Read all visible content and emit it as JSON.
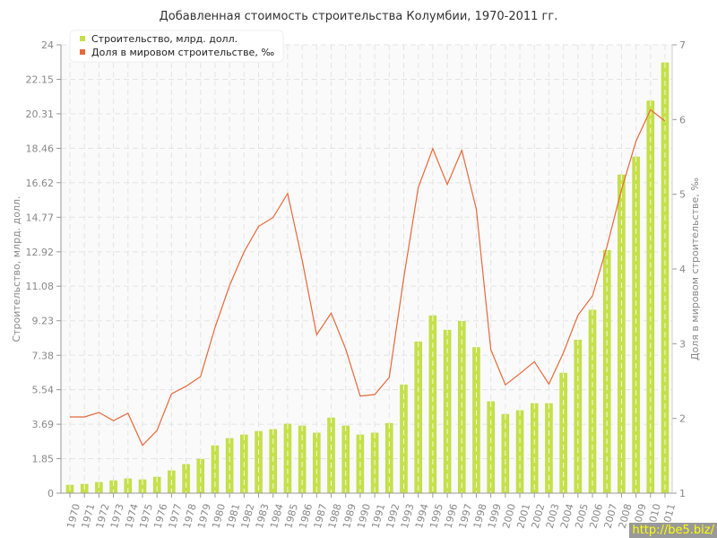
{
  "chart_data": {
    "type": "bar+line",
    "title": "Добавленная стоимость строительства Колумбии, 1970-2011 гг.",
    "ylabel": "Строительство, млрд. долл.",
    "y2label": "Доля в мировом строительстве, ‰",
    "ylim": [
      0,
      24
    ],
    "y2lim": [
      1,
      7
    ],
    "yticks": [
      "0",
      "1.85",
      "3.69",
      "5.54",
      "7.38",
      "9.23",
      "11.08",
      "12.92",
      "14.77",
      "16.62",
      "18.46",
      "20.31",
      "22.15",
      "24"
    ],
    "y2ticks": [
      "1",
      "2",
      "3",
      "4",
      "5",
      "6",
      "7"
    ],
    "grid": true,
    "legend_position": "top-left",
    "categories": [
      "1970",
      "1971",
      "1972",
      "1973",
      "1974",
      "1975",
      "1976",
      "1977",
      "1978",
      "1979",
      "1980",
      "1981",
      "1982",
      "1983",
      "1984",
      "1985",
      "1986",
      "1987",
      "1988",
      "1989",
      "1990",
      "1991",
      "1992",
      "1993",
      "1994",
      "1995",
      "1996",
      "1997",
      "1998",
      "1999",
      "2000",
      "2001",
      "2002",
      "2003",
      "2004",
      "2005",
      "2006",
      "2007",
      "2008",
      "2009",
      "2010",
      "2011"
    ],
    "series": [
      {
        "name": "Строительство, млрд. долл.",
        "type": "bar",
        "axis": "left",
        "color": "#c5e04a",
        "values": [
          0.43,
          0.48,
          0.58,
          0.67,
          0.77,
          0.72,
          0.86,
          1.2,
          1.54,
          1.82,
          2.54,
          2.93,
          3.12,
          3.31,
          3.41,
          3.7,
          3.6,
          3.22,
          4.03,
          3.6,
          3.12,
          3.22,
          3.74,
          5.8,
          8.1,
          9.5,
          8.73,
          9.2,
          7.8,
          4.9,
          4.22,
          4.42,
          4.8,
          4.8,
          6.43,
          8.2,
          9.8,
          13.0,
          17.04,
          18.0,
          21.0,
          23.04
        ]
      },
      {
        "name": "Доля в мировом строительстве, ‰",
        "type": "line",
        "axis": "right",
        "color": "#e8683a",
        "values": [
          2.02,
          2.02,
          2.08,
          1.97,
          2.07,
          1.64,
          1.84,
          2.33,
          2.43,
          2.56,
          3.22,
          3.78,
          4.23,
          4.57,
          4.69,
          5.01,
          4.12,
          3.12,
          3.41,
          2.93,
          2.3,
          2.32,
          2.55,
          3.88,
          5.09,
          5.61,
          5.13,
          5.59,
          4.8,
          2.92,
          2.45,
          2.6,
          2.76,
          2.46,
          2.88,
          3.38,
          3.64,
          4.3,
          5.06,
          5.71,
          6.13,
          5.98
        ]
      }
    ]
  },
  "watermark": "http://be5.biz/"
}
